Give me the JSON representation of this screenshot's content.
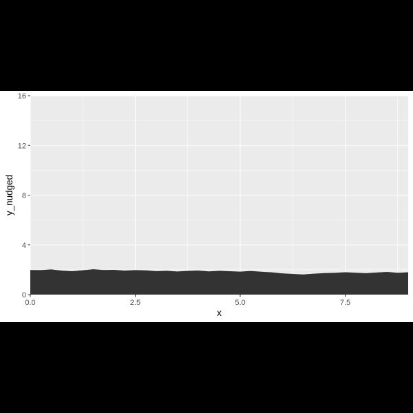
{
  "chart_data": {
    "type": "area",
    "title": "",
    "xlabel": "x",
    "ylabel": "y_nudged",
    "xlim": [
      0,
      9
    ],
    "ylim": [
      0,
      16
    ],
    "x_ticks": [
      0,
      2.5,
      5,
      7.5
    ],
    "x_tick_labels": [
      "0.0",
      "2.5",
      "5.0",
      "7.5"
    ],
    "y_ticks": [
      0,
      4,
      8,
      12,
      16
    ],
    "y_tick_labels": [
      "0",
      "4",
      "8",
      "12",
      "16"
    ],
    "grid": true,
    "legend": "none",
    "colors": {
      "panel_background": "#ebebeb",
      "grid_line": "#ffffff",
      "area_fill": "#333333",
      "page_band": "#ffffff",
      "outer_background": "#000000"
    },
    "x": [
      0,
      0.25,
      0.5,
      0.75,
      1.0,
      1.25,
      1.5,
      1.75,
      2.0,
      2.25,
      2.5,
      2.75,
      3.0,
      3.25,
      3.5,
      3.75,
      4.0,
      4.25,
      4.5,
      4.75,
      5.0,
      5.25,
      5.5,
      5.75,
      6.0,
      6.25,
      6.5,
      6.75,
      7.0,
      7.25,
      7.5,
      7.75,
      8.0,
      8.25,
      8.5,
      8.75,
      9.0
    ],
    "y": [
      1.98,
      1.97,
      2.03,
      1.93,
      1.88,
      1.96,
      2.04,
      1.98,
      1.99,
      1.93,
      1.97,
      1.95,
      1.89,
      1.92,
      1.86,
      1.91,
      1.94,
      1.87,
      1.92,
      1.88,
      1.85,
      1.9,
      1.84,
      1.79,
      1.71,
      1.66,
      1.62,
      1.68,
      1.73,
      1.75,
      1.8,
      1.76,
      1.72,
      1.78,
      1.83,
      1.75,
      1.8
    ]
  }
}
